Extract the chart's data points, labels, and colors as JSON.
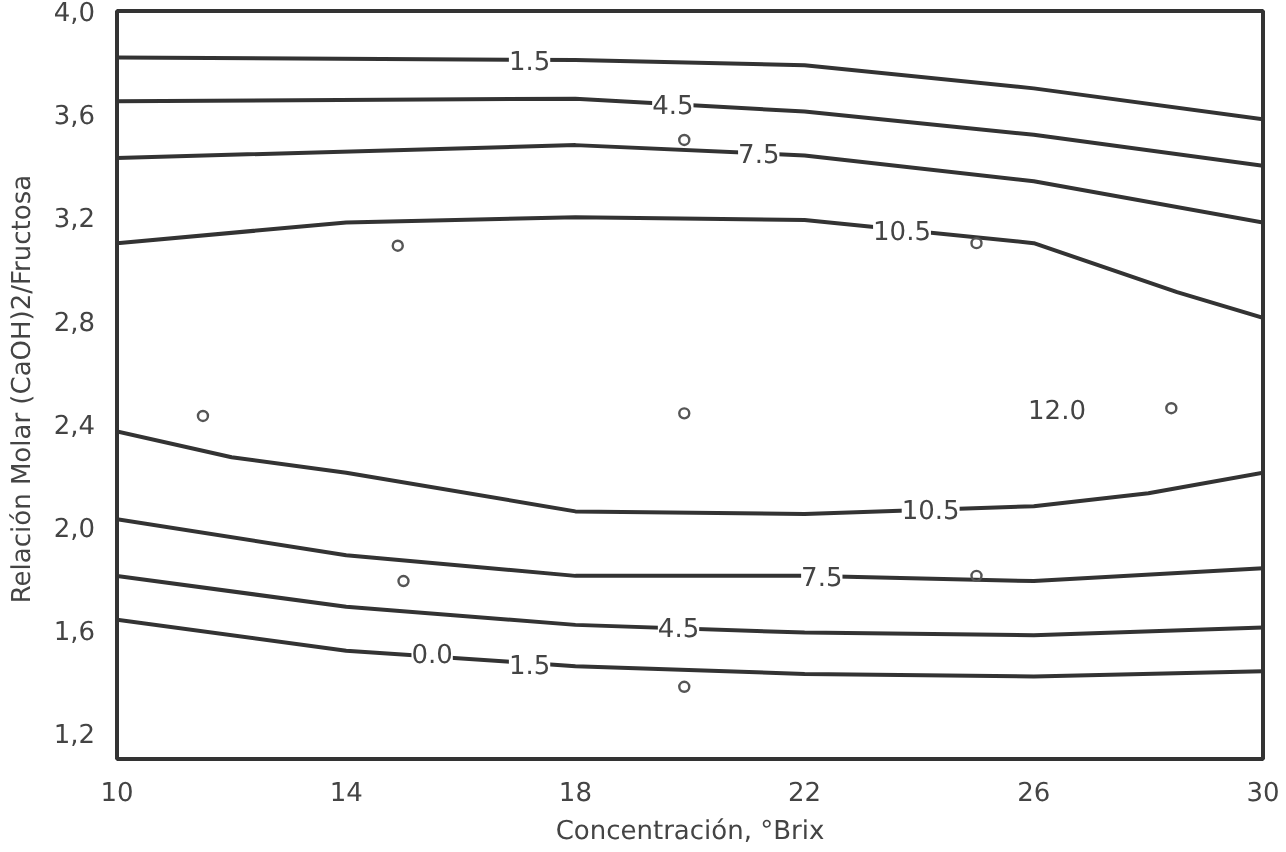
{
  "chart_data": {
    "type": "line",
    "xlabel": "Concentración, °Brix",
    "ylabel": "Relación Molar  (CaOH)2/Fructosa",
    "xlim": [
      10,
      30
    ],
    "ylim": [
      1.1,
      4.0
    ],
    "xticks": [
      10,
      14,
      18,
      22,
      26,
      30
    ],
    "yticks": [
      {
        "value": 1.2,
        "label": "1,2"
      },
      {
        "value": 1.6,
        "label": "1,6"
      },
      {
        "value": 2.0,
        "label": "2,0"
      },
      {
        "value": 2.4,
        "label": "2,4"
      },
      {
        "value": 2.8,
        "label": "2,8"
      },
      {
        "value": 3.2,
        "label": "3,2"
      },
      {
        "value": 3.6,
        "label": "3,6"
      },
      {
        "value": 4.0,
        "label": "4,0"
      }
    ],
    "series": [
      {
        "color": "#333333",
        "x": [
          10,
          18,
          22,
          26,
          30
        ],
        "values": [
          3.82,
          3.81,
          3.79,
          3.7,
          3.58
        ]
      },
      {
        "color": "#333333",
        "x": [
          10,
          18,
          22,
          26,
          30
        ],
        "values": [
          3.65,
          3.66,
          3.61,
          3.52,
          3.4
        ]
      },
      {
        "color": "#333333",
        "x": [
          10,
          18,
          22,
          26,
          30
        ],
        "values": [
          3.43,
          3.48,
          3.44,
          3.34,
          3.18
        ]
      },
      {
        "color": "#333333",
        "x": [
          10,
          14,
          18,
          22,
          26,
          28.5,
          30
        ],
        "values": [
          3.1,
          3.18,
          3.2,
          3.19,
          3.1,
          2.91,
          2.81
        ]
      },
      {
        "color": "#333333",
        "x": [
          10,
          12,
          14,
          18,
          22,
          26,
          28,
          30
        ],
        "values": [
          2.37,
          2.27,
          2.21,
          2.06,
          2.05,
          2.08,
          2.13,
          2.21
        ]
      },
      {
        "color": "#333333",
        "x": [
          10,
          14,
          18,
          22,
          26,
          30
        ],
        "values": [
          2.03,
          1.89,
          1.81,
          1.81,
          1.79,
          1.84
        ]
      },
      {
        "color": "#333333",
        "x": [
          10,
          14,
          18,
          22,
          26,
          30
        ],
        "values": [
          1.81,
          1.69,
          1.62,
          1.59,
          1.58,
          1.61
        ]
      },
      {
        "color": "#333333",
        "x": [
          10,
          14,
          18,
          22,
          26,
          30
        ],
        "values": [
          1.64,
          1.52,
          1.46,
          1.43,
          1.42,
          1.44
        ]
      },
      {
        "type": "scatter",
        "marker": "circle",
        "color": "#555555",
        "x": [
          11.5,
          14.9,
          19.9,
          19.9,
          15.0,
          19.9,
          25.0,
          25.0,
          28.4
        ],
        "values": [
          2.43,
          3.09,
          3.5,
          2.44,
          1.79,
          1.38,
          3.1,
          1.81,
          2.46
        ]
      }
    ],
    "annotations": [
      {
        "text": "1.5",
        "x": 17.2,
        "y": 3.81
      },
      {
        "text": "4.5",
        "x": 19.7,
        "y": 3.64
      },
      {
        "text": "7.5",
        "x": 21.2,
        "y": 3.45
      },
      {
        "text": "10.5",
        "x": 23.7,
        "y": 3.15
      },
      "12.0",
      {
        "text": "10.5",
        "x": 24.2,
        "y": 2.07
      },
      {
        "text": "7.5",
        "x": 22.3,
        "y": 1.81
      },
      {
        "text": "4.5",
        "x": 19.8,
        "y": 1.61
      },
      {
        "text": "1.5",
        "x": 17.2,
        "y": 1.47
      },
      {
        "text": "0.0",
        "x": 15.5,
        "y": 1.51
      }
    ]
  }
}
